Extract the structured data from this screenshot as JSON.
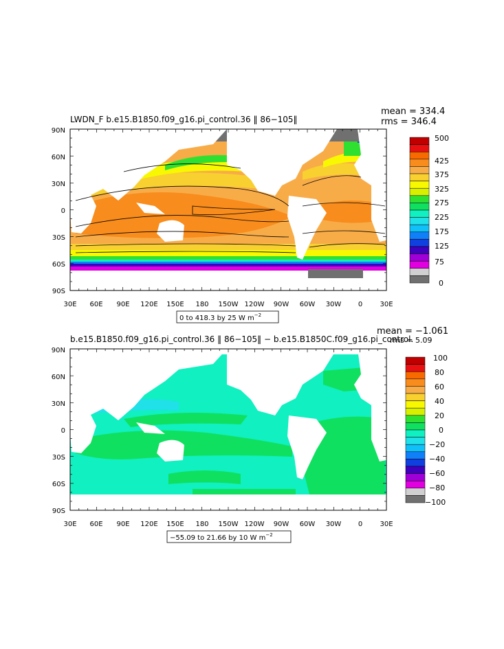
{
  "panels": [
    {
      "id": "top",
      "title": "LWDN_F b.e15.B1850.f09_g16.pi_control.36 ‖ 86−105‖",
      "mean_text": "mean = 334.4",
      "rms_text": "rms = 346.4",
      "range_text": "0 to 418.3 by 25  W m",
      "range_unit_sup": "−2",
      "y_ticks": [
        "90N",
        "60N",
        "30N",
        "0",
        "30S",
        "60S",
        "90S"
      ],
      "x_ticks": [
        "30E",
        "60E",
        "90E",
        "120E",
        "150E",
        "180",
        "150W",
        "120W",
        "90W",
        "60W",
        "30W",
        "0",
        "30E"
      ],
      "colorbar_labels": [
        "500",
        "425",
        "375",
        "325",
        "275",
        "225",
        "175",
        "125",
        "75",
        "0"
      ],
      "colorbar_colors": [
        "#c00000",
        "#e81010",
        "#f86a00",
        "#f88c1c",
        "#f8ac48",
        "#f8d030",
        "#f8f800",
        "#d8f000",
        "#30e030",
        "#10e060",
        "#10f0c0",
        "#20e0e8",
        "#10c0f8",
        "#1080f8",
        "#1040e0",
        "#4000c0",
        "#a000d8",
        "#e000e0",
        "#d0d0d0",
        "#707070"
      ]
    },
    {
      "id": "bottom",
      "title": "b.e15.B1850.f09_g16.pi_control.36 ‖ 86−105‖ − b.e15.B1850C.f09_g16.pi_control.",
      "mean_text": "mean = −1.061",
      "rms_text": "rms = 5.09",
      "range_text": "−55.09 to 21.66 by 10  W m",
      "range_unit_sup": "−2",
      "y_ticks": [
        "90N",
        "60N",
        "30N",
        "0",
        "30S",
        "60S",
        "90S"
      ],
      "x_ticks": [
        "30E",
        "60E",
        "90E",
        "120E",
        "150E",
        "180",
        "150W",
        "120W",
        "90W",
        "60W",
        "30W",
        "0",
        "30E"
      ],
      "colorbar_labels": [
        "100",
        "80",
        "60",
        "40",
        "20",
        "0",
        "−20",
        "−40",
        "−60",
        "−80",
        "−100"
      ],
      "colorbar_colors": [
        "#c00000",
        "#e81010",
        "#f86a00",
        "#f88c1c",
        "#f8ac48",
        "#f8d030",
        "#f8f800",
        "#d8f000",
        "#30e030",
        "#10e060",
        "#10f0c0",
        "#20e0e8",
        "#10c0f8",
        "#1080f8",
        "#1040e0",
        "#4000c0",
        "#a000d8",
        "#e000e0",
        "#d0d0d0",
        "#707070"
      ]
    }
  ]
}
